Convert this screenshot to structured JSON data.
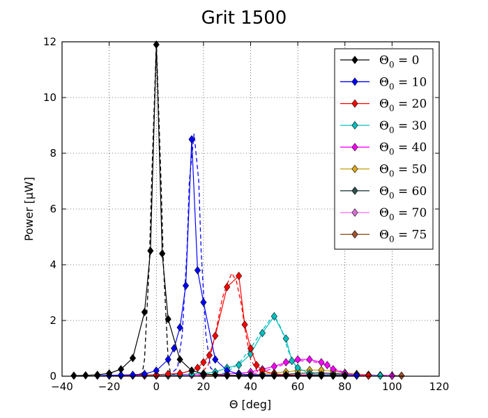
{
  "chart_data": {
    "type": "line",
    "title": "Grit 1500",
    "xlabel": "Θ [deg]",
    "ylabel": "Power [μW]",
    "xlim": [
      -40,
      120
    ],
    "ylim": [
      0,
      12
    ],
    "xticks": [
      -40,
      -20,
      0,
      20,
      40,
      60,
      80,
      100,
      120
    ],
    "xtick_labels": [
      "−40",
      "−20",
      "0",
      "20",
      "40",
      "60",
      "80",
      "100",
      "120"
    ],
    "yticks": [
      0,
      2,
      4,
      6,
      8,
      10,
      12
    ],
    "ytick_labels": [
      "0",
      "2",
      "4",
      "6",
      "8",
      "10",
      "12"
    ],
    "grid": true,
    "legend_position": "top-right",
    "series": [
      {
        "name": "Θ0 = 0",
        "legend_main": "Θ",
        "legend_sub": "0",
        "legend_rest": " = 0",
        "color": "#000000",
        "marker_color": "#000000",
        "x": [
          -35,
          -30,
          -25,
          -20,
          -15,
          -10,
          -5,
          -2.5,
          0,
          2.5,
          5,
          10,
          15,
          20,
          25,
          30,
          35,
          40,
          45,
          50,
          55,
          60,
          65,
          70,
          75,
          80
        ],
        "y": [
          0.02,
          0.03,
          0.05,
          0.1,
          0.25,
          0.65,
          2.3,
          4.5,
          11.9,
          4.4,
          2.05,
          0.6,
          0.2,
          0.08,
          0.05,
          0.03,
          0.02,
          0.02,
          0.02,
          0.02,
          0.02,
          0.02,
          0.02,
          0.02,
          0.02,
          0.02
        ],
        "fit_x": [
          -10,
          -6,
          -5,
          -3,
          -2,
          0,
          2,
          3,
          5,
          6,
          10
        ],
        "fit_y": [
          0,
          0.1,
          0.6,
          4.0,
          7.0,
          12.0,
          7.0,
          4.0,
          0.6,
          0.1,
          0
        ]
      },
      {
        "name": "Θ0 = 10",
        "legend_main": "Θ",
        "legend_sub": "0",
        "legend_rest": " = 10",
        "color": "#0000ff",
        "marker_color": "#0000ff",
        "x": [
          -25,
          -20,
          -15,
          -10,
          -5,
          0,
          5,
          7.5,
          10,
          12.5,
          15,
          17.5,
          20,
          25,
          30,
          35,
          40,
          45,
          50,
          55,
          60,
          65,
          70,
          75,
          80,
          85
        ],
        "y": [
          0.02,
          0.03,
          0.04,
          0.05,
          0.08,
          0.2,
          0.6,
          1.0,
          1.75,
          3.25,
          8.5,
          3.8,
          2.65,
          0.6,
          0.2,
          0.08,
          0.05,
          0.04,
          0.03,
          0.03,
          0.02,
          0.02,
          0.02,
          0.02,
          0.02,
          0.02
        ],
        "fit_x": [
          5,
          9,
          11,
          13,
          14,
          16,
          18,
          19,
          21,
          23,
          27
        ],
        "fit_y": [
          0,
          0.3,
          1.5,
          4.5,
          7.0,
          8.7,
          7.0,
          4.5,
          1.5,
          0.3,
          0
        ]
      },
      {
        "name": "Θ0 = 20",
        "legend_main": "Θ",
        "legend_sub": "0",
        "legend_rest": " = 20",
        "color": "#ff0000",
        "marker_color": "#ff0000",
        "x": [
          -20,
          -15,
          -10,
          -5,
          0,
          5,
          10,
          15,
          17.5,
          20,
          22.5,
          25,
          30,
          35,
          37.5,
          40,
          42.5,
          45,
          50,
          55,
          60,
          65,
          70,
          75,
          80,
          85,
          90
        ],
        "y": [
          0.02,
          0.02,
          0.03,
          0.04,
          0.05,
          0.08,
          0.1,
          0.2,
          0.3,
          0.5,
          0.75,
          1.45,
          3.2,
          3.6,
          1.85,
          1.0,
          0.4,
          0.2,
          0.08,
          0.05,
          0.04,
          0.03,
          0.03,
          0.02,
          0.02,
          0.02,
          0.02
        ],
        "fit_x": [
          18,
          22,
          25,
          28,
          30,
          32,
          34,
          36,
          38,
          40,
          44
        ],
        "fit_y": [
          0,
          0.4,
          1.5,
          2.8,
          3.3,
          3.7,
          3.4,
          2.6,
          1.5,
          0.6,
          0
        ]
      },
      {
        "name": "Θ0 = 30",
        "legend_main": "Θ",
        "legend_sub": "0",
        "legend_rest": " = 30",
        "color": "#00bfbf",
        "marker_color": "#00bfbf",
        "x": [
          -10,
          -5,
          0,
          5,
          10,
          15,
          20,
          25,
          30,
          35,
          40,
          45,
          50,
          55,
          57.5,
          60,
          65,
          70,
          75,
          80,
          85,
          90,
          95
        ],
        "y": [
          0.02,
          0.02,
          0.03,
          0.04,
          0.05,
          0.08,
          0.1,
          0.15,
          0.3,
          0.4,
          0.8,
          1.55,
          2.15,
          1.35,
          0.55,
          0.3,
          0.1,
          0.05,
          0.04,
          0.03,
          0.03,
          0.02,
          0.02
        ],
        "fit_x": [
          25,
          30,
          35,
          40,
          45,
          48,
          50,
          53,
          56,
          60
        ],
        "fit_y": [
          0,
          0.15,
          0.45,
          1.0,
          1.65,
          2.0,
          2.2,
          1.7,
          0.9,
          0.2
        ]
      },
      {
        "name": "Θ0 = 40",
        "legend_main": "Θ",
        "legend_sub": "0",
        "legend_rest": " = 40",
        "color": "#ff00ff",
        "marker_color": "#ff00ff",
        "x": [
          0,
          5,
          10,
          15,
          20,
          25,
          30,
          35,
          40,
          45,
          50,
          55,
          60,
          65,
          70,
          72.5,
          75,
          80,
          85,
          90,
          95,
          100
        ],
        "y": [
          0.02,
          0.02,
          0.03,
          0.04,
          0.05,
          0.06,
          0.08,
          0.1,
          0.15,
          0.25,
          0.35,
          0.5,
          0.6,
          0.6,
          0.5,
          0.4,
          0.25,
          0.1,
          0.05,
          0.04,
          0.03,
          0.02
        ],
        "fit_x": [
          35,
          45,
          50,
          55,
          60,
          65,
          70,
          75,
          80,
          85
        ],
        "fit_y": [
          0,
          0.15,
          0.3,
          0.45,
          0.55,
          0.55,
          0.45,
          0.3,
          0.12,
          0
        ]
      },
      {
        "name": "Θ0 = 50",
        "legend_main": "Θ",
        "legend_sub": "0",
        "legend_rest": " = 50",
        "color": "#bf9f00",
        "marker_color": "#daa520",
        "x": [
          20,
          30,
          40,
          45,
          50,
          55,
          60,
          65,
          70,
          75,
          80,
          85,
          90,
          95,
          100
        ],
        "y": [
          0.02,
          0.03,
          0.05,
          0.08,
          0.12,
          0.15,
          0.2,
          0.22,
          0.22,
          0.18,
          0.12,
          0.08,
          0.05,
          0.03,
          0.02
        ],
        "fit_x": [],
        "fit_y": []
      },
      {
        "name": "Θ0 = 60",
        "legend_main": "Θ",
        "legend_sub": "0",
        "legend_rest": " = 60",
        "color": "#1f3f3f",
        "marker_color": "#2f4f4f",
        "x": [
          30,
          40,
          50,
          55,
          60,
          65,
          70,
          75,
          80,
          85,
          90,
          95,
          100
        ],
        "y": [
          0.02,
          0.03,
          0.05,
          0.07,
          0.1,
          0.12,
          0.12,
          0.1,
          0.08,
          0.05,
          0.04,
          0.03,
          0.02
        ],
        "fit_x": [],
        "fit_y": []
      },
      {
        "name": "Θ0 = 70",
        "legend_main": "Θ",
        "legend_sub": "0",
        "legend_rest": " = 70",
        "color": "#ff66ff",
        "marker_color": "#da70d6",
        "x": [
          40,
          50,
          60,
          65,
          70,
          75,
          80,
          85,
          90,
          95,
          100
        ],
        "y": [
          0.02,
          0.03,
          0.05,
          0.06,
          0.08,
          0.08,
          0.07,
          0.05,
          0.04,
          0.03,
          0.02
        ],
        "fit_x": [],
        "fit_y": []
      },
      {
        "name": "Θ0 = 75",
        "legend_main": "Θ",
        "legend_sub": "0",
        "legend_rest": " = 75",
        "color": "#8b4513",
        "marker_color": "#a0522d",
        "x": [
          50,
          60,
          70,
          75,
          80,
          85,
          90,
          95,
          100,
          104
        ],
        "y": [
          0.02,
          0.03,
          0.05,
          0.06,
          0.06,
          0.05,
          0.04,
          0.03,
          0.02,
          0.02
        ],
        "fit_x": [],
        "fit_y": []
      }
    ]
  }
}
